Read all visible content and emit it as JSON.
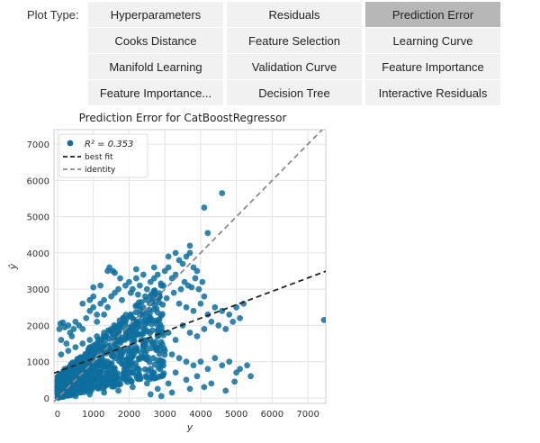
{
  "plot_type_label": "Plot Type:",
  "tabs": [
    {
      "label": "Hyperparameters",
      "selected": false
    },
    {
      "label": "Residuals",
      "selected": false
    },
    {
      "label": "Prediction Error",
      "selected": true
    },
    {
      "label": "Cooks Distance",
      "selected": false
    },
    {
      "label": "Feature Selection",
      "selected": false
    },
    {
      "label": "Learning Curve",
      "selected": false
    },
    {
      "label": "Manifold Learning",
      "selected": false
    },
    {
      "label": "Validation Curve",
      "selected": false
    },
    {
      "label": "Feature Importance",
      "selected": false
    },
    {
      "label": "Feature Importance...",
      "selected": false
    },
    {
      "label": "Decision Tree",
      "selected": false
    },
    {
      "label": "Interactive Residuals",
      "selected": false
    }
  ],
  "colors": {
    "points": "#0e6f9e",
    "best_fit": "#222222",
    "identity": "#8a8a8a",
    "selected_tab": "#b7b7b7",
    "tab": "#f1f1f1"
  },
  "chart_data": {
    "type": "scatter",
    "title": "Prediction Error for CatBoostRegressor",
    "xlabel": "y",
    "ylabel": "ŷ",
    "xlim": [
      -100,
      7500
    ],
    "ylim": [
      -150,
      7400
    ],
    "xticks": [
      0,
      1000,
      2000,
      3000,
      4000,
      5000,
      6000,
      7000
    ],
    "yticks": [
      0,
      1000,
      2000,
      3000,
      4000,
      5000,
      6000,
      7000
    ],
    "grid": true,
    "legend_position": "top-left",
    "legend": [
      {
        "label": "R² = 0.353",
        "kind": "points"
      },
      {
        "label": "best fit",
        "kind": "dashed-line"
      },
      {
        "label": "identity",
        "kind": "dashed-line"
      }
    ],
    "best_fit": {
      "slope": 0.37,
      "intercept": 720
    },
    "identity": {
      "slope": 1,
      "intercept": 0
    },
    "series": [
      {
        "points": [
          [
            50,
            1900
          ],
          [
            80,
            2050
          ],
          [
            150,
            2080
          ],
          [
            200,
            1950
          ],
          [
            300,
            2000
          ],
          [
            350,
            1800
          ],
          [
            100,
            1600
          ],
          [
            250,
            1500
          ],
          [
            400,
            1700
          ],
          [
            450,
            1900
          ],
          [
            500,
            2100
          ],
          [
            600,
            2000
          ],
          [
            700,
            1900
          ],
          [
            800,
            2200
          ],
          [
            900,
            2400
          ],
          [
            1000,
            2500
          ],
          [
            1100,
            2300
          ],
          [
            1200,
            2600
          ],
          [
            1300,
            2700
          ],
          [
            1400,
            2500
          ],
          [
            1500,
            2800
          ],
          [
            1600,
            2900
          ],
          [
            1700,
            3000
          ],
          [
            1800,
            2700
          ],
          [
            1900,
            3100
          ],
          [
            2000,
            3200
          ],
          [
            2100,
            3000
          ],
          [
            2200,
            3300
          ],
          [
            2300,
            3100
          ],
          [
            2400,
            3400
          ],
          [
            2500,
            3000
          ],
          [
            2600,
            3200
          ],
          [
            2700,
            3300
          ],
          [
            2800,
            3400
          ],
          [
            2900,
            3100
          ],
          [
            3000,
            3500
          ],
          [
            3100,
            3600
          ],
          [
            3200,
            3300
          ],
          [
            3300,
            3400
          ],
          [
            3400,
            3800
          ],
          [
            3500,
            3700
          ],
          [
            3600,
            3900
          ],
          [
            3700,
            4000
          ],
          [
            3800,
            3600
          ],
          [
            3900,
            3500
          ],
          [
            1450,
            3600
          ],
          [
            1550,
            3500
          ],
          [
            1750,
            3300
          ],
          [
            1200,
            3100
          ],
          [
            1000,
            2800
          ],
          [
            900,
            2700
          ],
          [
            700,
            2600
          ],
          [
            1300,
            2300
          ],
          [
            1100,
            2100
          ],
          [
            2050,
            2900
          ],
          [
            2250,
            2850
          ],
          [
            2450,
            2800
          ],
          [
            2650,
            2700
          ],
          [
            2850,
            2800
          ],
          [
            3050,
            2750
          ],
          [
            3250,
            2900
          ],
          [
            3450,
            3000
          ],
          [
            3550,
            3200
          ],
          [
            3650,
            3100
          ],
          [
            3750,
            3050
          ],
          [
            3850,
            3300
          ],
          [
            3950,
            3000
          ],
          [
            4050,
            3200
          ],
          [
            4100,
            2800
          ],
          [
            3400,
            2600
          ],
          [
            3600,
            2500
          ],
          [
            3800,
            2400
          ],
          [
            4000,
            2600
          ],
          [
            4200,
            2300
          ],
          [
            4400,
            2500
          ],
          [
            4600,
            2400
          ],
          [
            4800,
            2300
          ],
          [
            5000,
            2500
          ],
          [
            5200,
            2600
          ],
          [
            4300,
            2100
          ],
          [
            4500,
            2000
          ],
          [
            4700,
            1900
          ],
          [
            4900,
            2100
          ],
          [
            5100,
            2200
          ],
          [
            3500,
            2000
          ],
          [
            3700,
            1800
          ],
          [
            3900,
            1700
          ],
          [
            3300,
            1600
          ],
          [
            3100,
            1800
          ],
          [
            4100,
            1900
          ],
          [
            3000,
            1300
          ],
          [
            3200,
            1200
          ],
          [
            3400,
            1100
          ],
          [
            3600,
            1000
          ],
          [
            3800,
            900
          ],
          [
            4000,
            1000
          ],
          [
            4200,
            800
          ],
          [
            4400,
            1100
          ],
          [
            4600,
            900
          ],
          [
            4800,
            1000
          ],
          [
            5000,
            700
          ],
          [
            5100,
            800
          ],
          [
            3900,
            600
          ],
          [
            3600,
            500
          ],
          [
            3300,
            700
          ],
          [
            2900,
            900
          ],
          [
            2700,
            700
          ],
          [
            2500,
            400
          ],
          [
            2300,
            600
          ],
          [
            2100,
            300
          ],
          [
            1900,
            500
          ],
          [
            1700,
            200
          ],
          [
            1500,
            400
          ],
          [
            1300,
            150
          ],
          [
            1100,
            300
          ],
          [
            900,
            100
          ],
          [
            700,
            200
          ],
          [
            500,
            50
          ],
          [
            300,
            100
          ],
          [
            150,
            80
          ],
          [
            2600,
            100
          ],
          [
            2800,
            250
          ],
          [
            3100,
            400
          ],
          [
            4300,
            400
          ],
          [
            4700,
            200
          ],
          [
            4950,
            450
          ],
          [
            5300,
            900
          ],
          [
            5400,
            600
          ],
          [
            4100,
            300
          ],
          [
            3200,
            150
          ],
          [
            2900,
            50
          ],
          [
            3700,
            250
          ],
          [
            600,
            400
          ],
          [
            800,
            600
          ],
          [
            1000,
            800
          ],
          [
            1200,
            900
          ],
          [
            1400,
            1000
          ],
          [
            1600,
            1100
          ],
          [
            1800,
            1200
          ],
          [
            2000,
            1300
          ],
          [
            2200,
            1400
          ],
          [
            2400,
            1500
          ],
          [
            2600,
            1600
          ],
          [
            2800,
            1700
          ],
          [
            200,
            800
          ],
          [
            400,
            900
          ],
          [
            600,
            1000
          ],
          [
            800,
            1100
          ],
          [
            1000,
            1200
          ],
          [
            1200,
            1300
          ],
          [
            1400,
            1400
          ],
          [
            1600,
            1500
          ],
          [
            1800,
            1600
          ],
          [
            2000,
            1700
          ],
          [
            2200,
            1800
          ],
          [
            2400,
            1900
          ],
          [
            100,
            1200
          ],
          [
            300,
            1300
          ],
          [
            500,
            1400
          ],
          [
            700,
            1500
          ],
          [
            900,
            1600
          ],
          [
            1100,
            1700
          ],
          [
            1300,
            1800
          ],
          [
            1500,
            1900
          ],
          [
            1700,
            2000
          ],
          [
            1900,
            2100
          ],
          [
            2100,
            2200
          ],
          [
            2300,
            2300
          ],
          [
            7450,
            2150
          ],
          [
            4100,
            5250
          ],
          [
            4600,
            5650
          ],
          [
            3700,
            4200
          ],
          [
            4200,
            4550
          ],
          [
            3300,
            4000
          ],
          [
            1000,
            3050
          ],
          [
            1400,
            3500
          ],
          [
            1600,
            3450
          ],
          [
            2200,
            3550
          ],
          [
            2700,
            3600
          ],
          [
            3100,
            3900
          ]
        ]
      }
    ]
  }
}
